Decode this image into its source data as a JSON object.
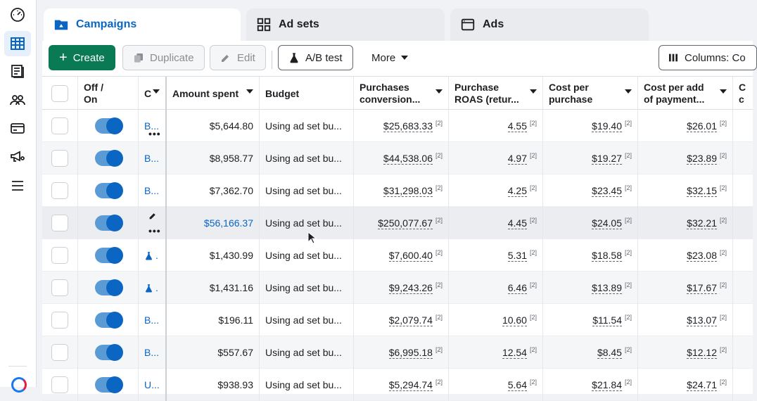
{
  "tabs": [
    {
      "label": "Campaigns",
      "icon": "folder-icon",
      "active": true
    },
    {
      "label": "Ad sets",
      "icon": "grid-icon",
      "active": false
    },
    {
      "label": "Ads",
      "icon": "ad-card-icon",
      "active": false
    }
  ],
  "toolbar": {
    "create_label": "Create",
    "duplicate_label": "Duplicate",
    "edit_label": "Edit",
    "ab_test_label": "A/B test",
    "more_label": "More",
    "columns_label": "Columns: Co"
  },
  "columns": [
    {
      "key": "onoff",
      "line1": "Off /",
      "line2": "On"
    },
    {
      "key": "name",
      "line1": "C",
      "line2": ""
    },
    {
      "key": "spent",
      "line1": "Amount spent",
      "line2": ""
    },
    {
      "key": "budget",
      "line1": "Budget",
      "line2": ""
    },
    {
      "key": "purchases",
      "line1": "Purchases",
      "line2": "conversion..."
    },
    {
      "key": "roas",
      "line1": "Purchase",
      "line2": "ROAS (retur..."
    },
    {
      "key": "cpp",
      "line1": "Cost per",
      "line2": "purchase"
    },
    {
      "key": "cpapi",
      "line1": "Cost per add",
      "line2": "of payment..."
    },
    {
      "key": "extra",
      "line1": "C",
      "line2": "c"
    }
  ],
  "rows": [
    {
      "name": "B...",
      "spent": "$5,644.80",
      "budget": "Using ad set bu...",
      "purchases": "$25,683.33",
      "roas": "4.55",
      "cpp": "$19.40",
      "cpapi": "$26.01",
      "sup": "[2]"
    },
    {
      "name": "B...",
      "spent": "$8,958.77",
      "budget": "Using ad set bu...",
      "purchases": "$44,538.06",
      "roas": "4.97",
      "cpp": "$19.27",
      "cpapi": "$23.89",
      "sup": "[2]"
    },
    {
      "name": "B...",
      "spent": "$7,362.70",
      "budget": "Using ad set bu...",
      "purchases": "$31,298.03",
      "roas": "4.25",
      "cpp": "$23.45",
      "cpapi": "$32.15",
      "sup": "[2]"
    },
    {
      "name": "",
      "spent": "$56,166.37",
      "budget": "Using ad set bu...",
      "purchases": "$250,077.67",
      "roas": "4.45",
      "cpp": "$24.05",
      "cpapi": "$32.21",
      "sup": "[2]"
    },
    {
      "name": ".",
      "spent": "$1,430.99",
      "budget": "Using ad set bu...",
      "purchases": "$7,600.40",
      "roas": "5.31",
      "cpp": "$18.58",
      "cpapi": "$23.08",
      "sup": "[2]"
    },
    {
      "name": ".",
      "spent": "$1,431.16",
      "budget": "Using ad set bu...",
      "purchases": "$9,243.26",
      "roas": "6.46",
      "cpp": "$13.89",
      "cpapi": "$17.67",
      "sup": "[2]"
    },
    {
      "name": "B...",
      "spent": "$196.11",
      "budget": "Using ad set bu...",
      "purchases": "$2,079.74",
      "roas": "10.60",
      "cpp": "$11.54",
      "cpapi": "$13.07",
      "sup": "[2]"
    },
    {
      "name": "B...",
      "spent": "$557.67",
      "budget": "Using ad set bu...",
      "purchases": "$6,995.18",
      "roas": "12.54",
      "cpp": "$8.45",
      "cpapi": "$12.12",
      "sup": "[2]"
    },
    {
      "name": "U...",
      "spent": "$938.93",
      "budget": "Using ad set bu...",
      "purchases": "$5,294.74",
      "roas": "5.64",
      "cpp": "$21.84",
      "cpapi": "$24.71",
      "sup": "[2]"
    }
  ],
  "colors": {
    "primary": "#0a7a55",
    "link": "#0a66c2",
    "toggle_on": "#0a66c2"
  }
}
